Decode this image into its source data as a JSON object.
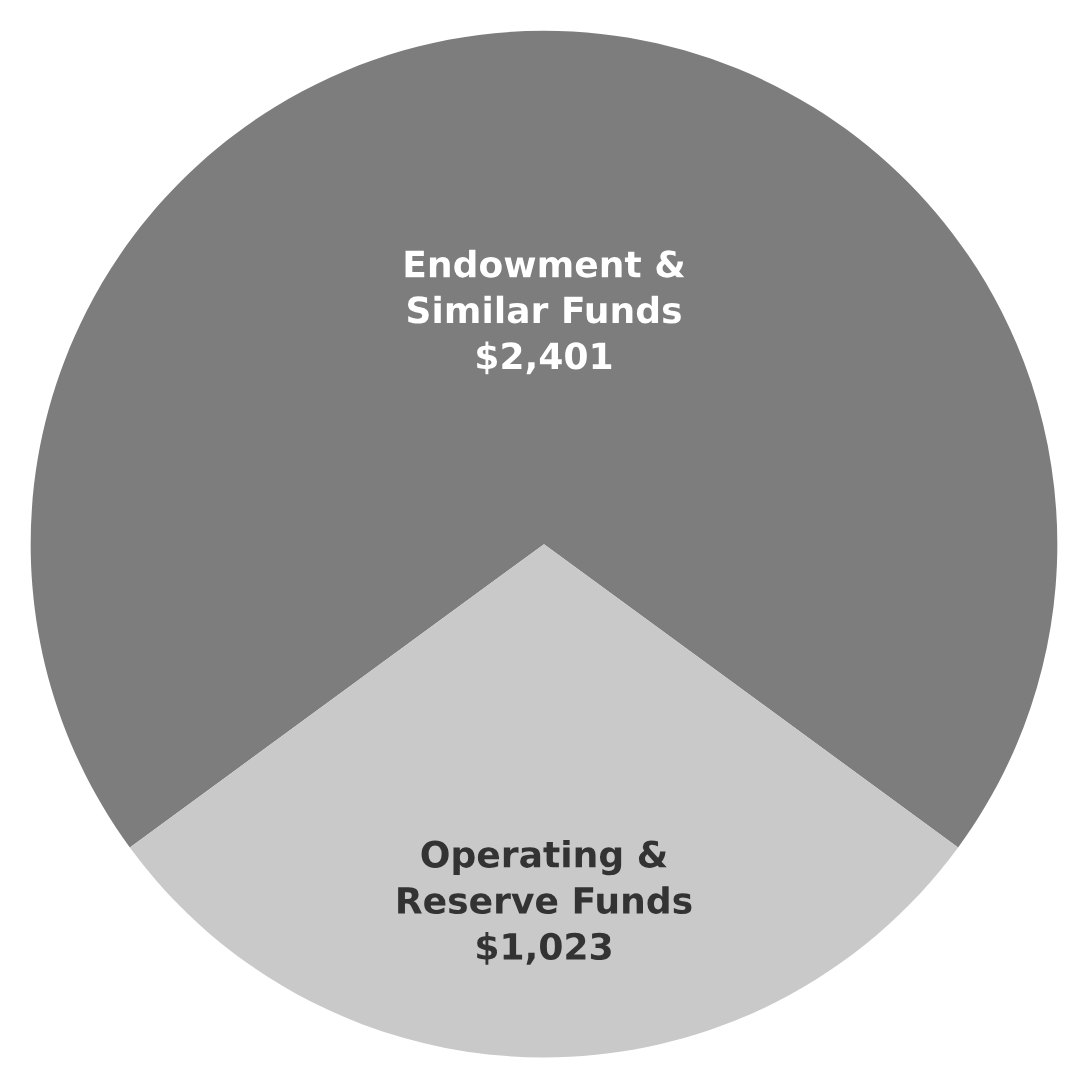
{
  "chart_data": {
    "type": "pie",
    "categories": [
      "Endowment &\nSimilar Funds",
      "Operating &\nReserve Funds"
    ],
    "values": [
      2401,
      1023
    ],
    "value_labels": [
      "$2,401",
      "$1,023"
    ],
    "colors": [
      "#7d7d7d",
      "#c9c9c9"
    ]
  }
}
